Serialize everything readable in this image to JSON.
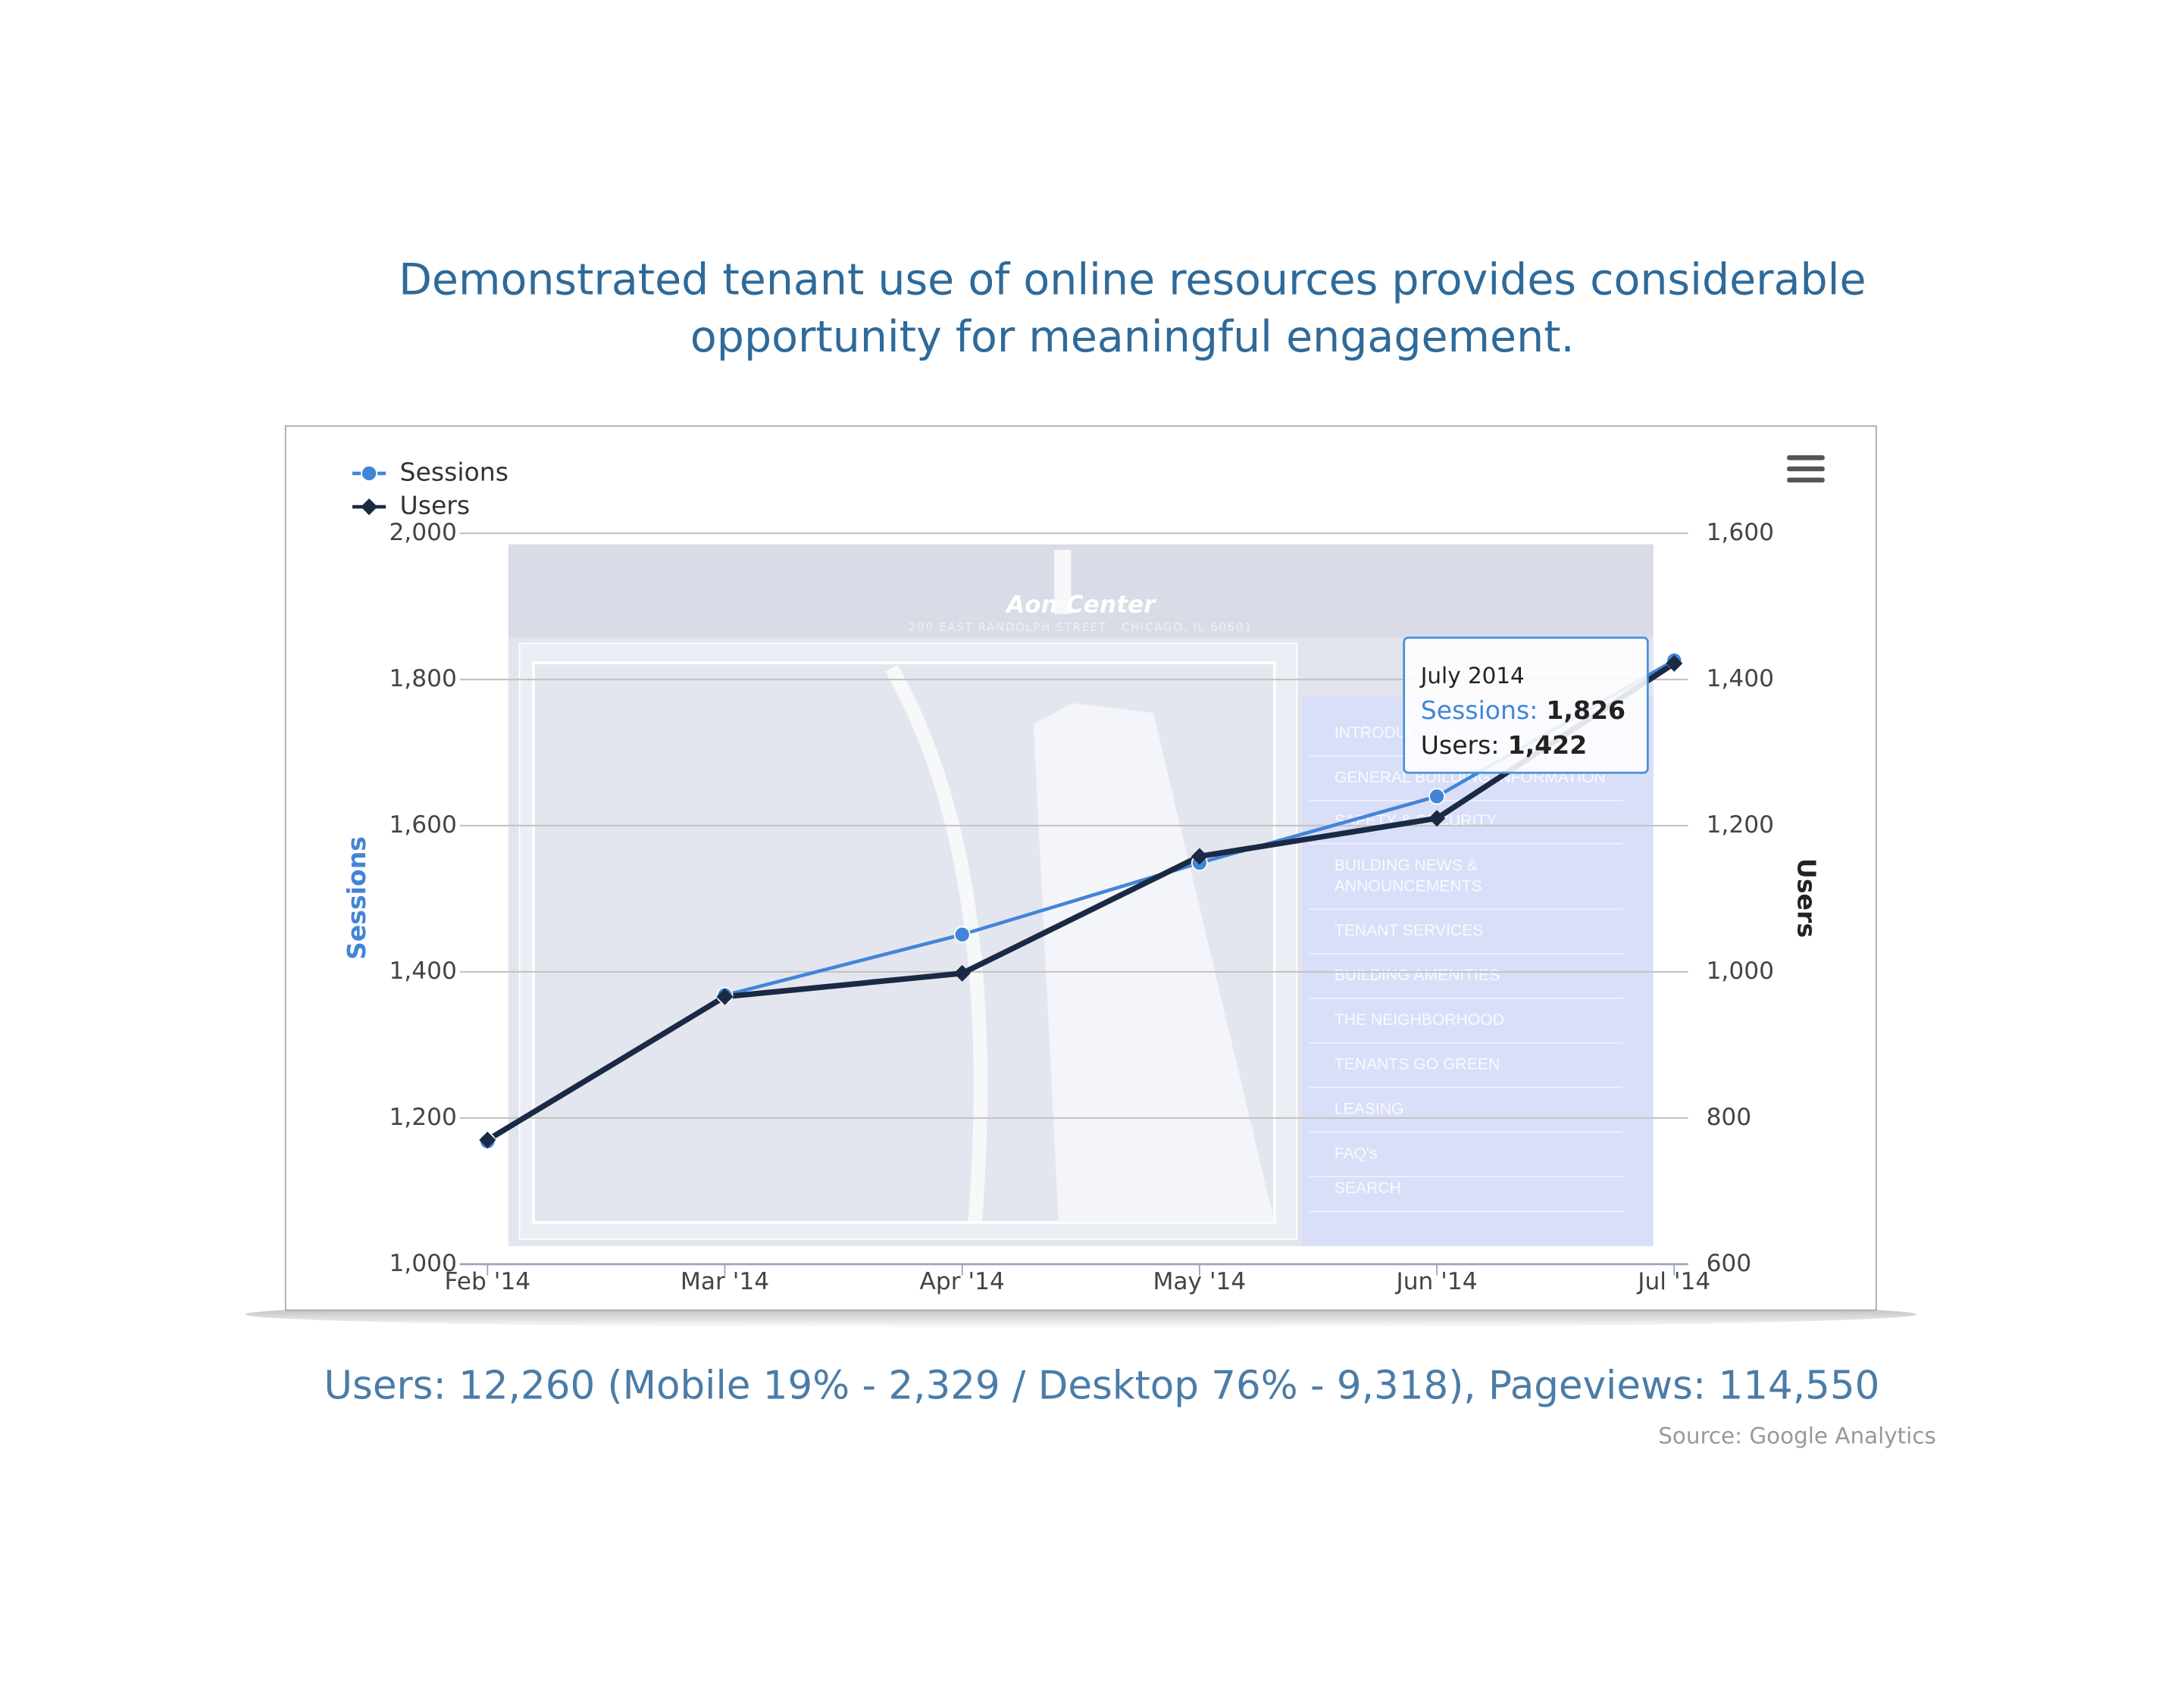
{
  "header": {
    "title": [
      "Demonstrated tenant use of online resources provides considerable",
      "opportunity for meaningful engagement."
    ]
  },
  "chart_data": {
    "type": "line",
    "categories": [
      "Feb '14",
      "Mar '14",
      "Apr '14",
      "May '14",
      "Jun '14",
      "Jul '14"
    ],
    "series": [
      {
        "name": "Sessions",
        "color": "#4285d8",
        "values": [
          1168,
          1368,
          1451,
          1549,
          1640,
          1826
        ],
        "value_labels": [
          null,
          null,
          null,
          null,
          null,
          "1,826"
        ]
      },
      {
        "name": "Users",
        "color": "#1a2a44",
        "axis": "y2",
        "values": [
          770,
          966,
          998,
          1158,
          1210,
          1422
        ],
        "value_labels": [
          null,
          null,
          null,
          null,
          null,
          "1,422"
        ]
      }
    ],
    "y_label": "Sessions",
    "y2_label": "Users",
    "ylim": [
      1000,
      2000
    ],
    "yticks": [
      {
        "value": 1000,
        "label": "1,000"
      },
      {
        "value": 1200,
        "label": "1,200"
      },
      {
        "value": 1400,
        "label": "1,400"
      },
      {
        "value": 1600,
        "label": "1,600"
      },
      {
        "value": 1800,
        "label": "1,800"
      },
      {
        "value": 2000,
        "label": "2,000"
      }
    ],
    "y2lim": [
      600,
      1600
    ],
    "y2ticks": [
      600,
      800,
      {
        "value": 1000,
        "label": "1,000"
      },
      {
        "value": 1200,
        "label": "1,200"
      },
      {
        "value": 1400,
        "label": "1,400"
      },
      {
        "value": 1600,
        "label": "1,600"
      }
    ],
    "grid": true,
    "legend": "top-left",
    "tooltip": {
      "title": "July 2014",
      "labels": [
        "Sessions:",
        "Users:"
      ]
    }
  },
  "background_screenshot": {
    "logo": "Aon Center",
    "address": "200 EAST RANDOLPH STREET · CHICAGO, IL 60601",
    "menu": [
      "INTRODUCTION",
      "GENERAL BUILDING INFORMATION",
      "SAFETY & SECURITY",
      "BUILDING NEWS &",
      "ANNOUNCEMENTS",
      "TENANT SERVICES",
      "BUILDING AMENITIES",
      "THE NEIGHBORHOOD",
      "TENANTS GO GREEN",
      "LEASING",
      "FAQ's",
      "SEARCH"
    ]
  },
  "footer": {
    "stats": "Users: 12,260 (Mobile 19% - 2,329 / Desktop 76% - 9,318), Pageviews: 114,550",
    "source": "Source: Google Analytics"
  }
}
